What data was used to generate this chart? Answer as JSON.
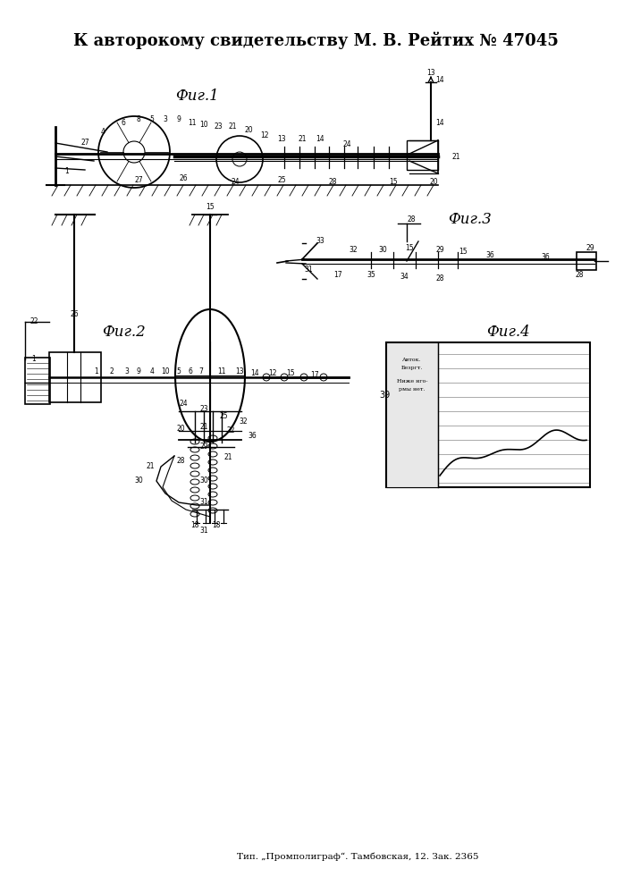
{
  "title": "К авторокому свидетельству М. В. Рейтих № 47045",
  "footer": "Тип. „Промполиграф“. Тамбовская, 12. Зак. 2365",
  "background": "#ffffff",
  "fig1_label": "Фиг.1",
  "fig2_label": "Фиг.2",
  "fig3_label": "Фиг.3",
  "fig4_label": "Фиг.4"
}
